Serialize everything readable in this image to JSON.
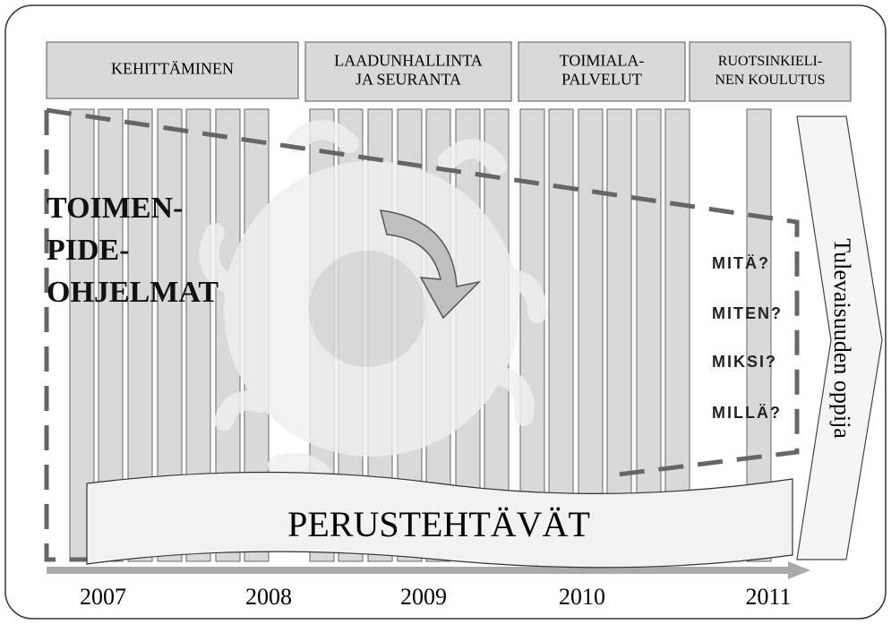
{
  "header": {
    "boxes": [
      {
        "lines": [
          "KEHITTÄMINEN"
        ]
      },
      {
        "lines": [
          "LAADUNHALLINTA",
          "JA SEURANTA"
        ]
      },
      {
        "lines": [
          "TOIMIALA-",
          "PALVELUT"
        ]
      },
      {
        "lines": [
          "RUOTSINKIELI-",
          "NEN KOULUTUS"
        ]
      }
    ]
  },
  "left_label": {
    "lines": [
      "TOIMEN-",
      "PIDE-",
      "OHJELMAT"
    ]
  },
  "questions": [
    "MITÄ?",
    "MITEN?",
    "MIKSI?",
    "MILLÄ?"
  ],
  "future": "Tulevaisuuden oppija",
  "banner": "PERUSTEHTÄVÄT",
  "timeline": [
    "2007",
    "2008",
    "2009",
    "2010",
    "2011"
  ]
}
